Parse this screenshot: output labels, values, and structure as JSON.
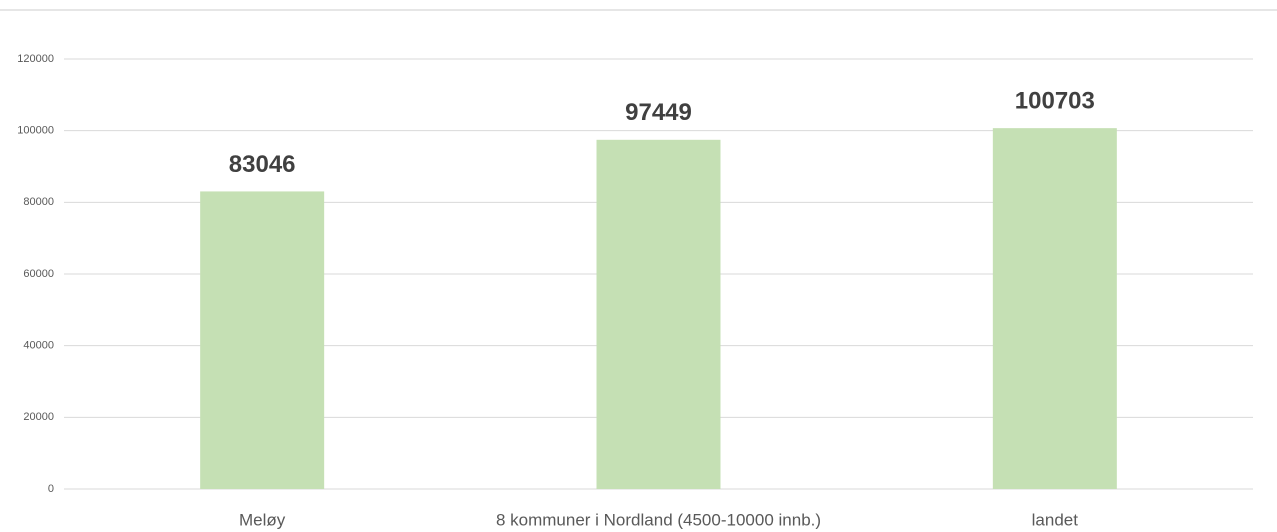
{
  "chart_data": {
    "type": "bar",
    "categories": [
      "Meløy",
      "8 kommuner i Nordland (4500-10000 innb.)",
      "landet"
    ],
    "values": [
      83046,
      97449,
      100703
    ],
    "color": "#c5e0b4",
    "ylim": [
      0,
      120000
    ],
    "yticks": [
      0,
      20000,
      40000,
      60000,
      80000,
      100000,
      120000
    ],
    "grid": true
  }
}
